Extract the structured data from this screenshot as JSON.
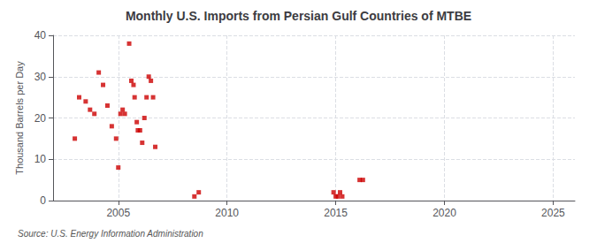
{
  "chart_data": {
    "type": "scatter",
    "title": "Monthly U.S. Imports from Persian Gulf Countries of MTBE",
    "ylabel": "Thousand Barrels per Day",
    "annotation": "Source: U.S. Energy Information Administration",
    "color": "#cc0000",
    "marker": "square",
    "grid": true,
    "xlim": [
      2002,
      2026
    ],
    "ylim": [
      0,
      40
    ],
    "xticks": [
      2005,
      2010,
      2015,
      2020,
      2025
    ],
    "yticks": [
      0,
      10,
      20,
      30,
      40
    ],
    "x": [
      2003.0,
      2003.2,
      2003.5,
      2003.7,
      2003.9,
      2004.1,
      2004.3,
      2004.5,
      2004.7,
      2004.9,
      2005.0,
      2005.1,
      2005.2,
      2005.3,
      2005.5,
      2005.6,
      2005.7,
      2005.75,
      2005.85,
      2005.9,
      2006.0,
      2006.1,
      2006.2,
      2006.3,
      2006.4,
      2006.5,
      2006.6,
      2006.7,
      2008.5,
      2008.7,
      2014.9,
      2015.0,
      2015.1,
      2015.2,
      2015.3,
      2016.1,
      2016.25
    ],
    "values": [
      15,
      25,
      24,
      22,
      21,
      31,
      28,
      23,
      18,
      15,
      8,
      21,
      22,
      21,
      38,
      29,
      28,
      25,
      19,
      17,
      17,
      14,
      20,
      25,
      30,
      29,
      25,
      13,
      1,
      2,
      2,
      1,
      1,
      2,
      1,
      5,
      5
    ]
  }
}
